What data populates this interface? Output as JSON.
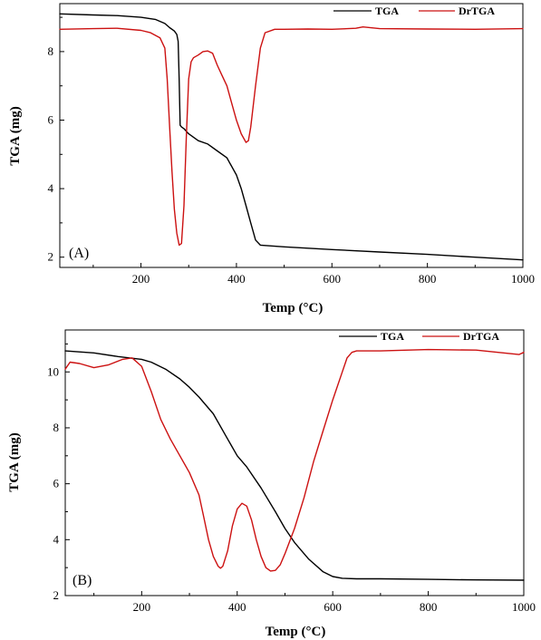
{
  "chart_data": [
    {
      "type": "line",
      "panel_label": "(A)",
      "xlabel": "Temp (°C)",
      "ylabel": "TGA (mg)",
      "xlim": [
        30,
        1000
      ],
      "ylim": [
        1.7,
        9.4
      ],
      "xticks": [
        200,
        400,
        600,
        800,
        1000
      ],
      "yticks": [
        2,
        4,
        6,
        8
      ],
      "grid": false,
      "legend_position": "top-right",
      "series": [
        {
          "name": "TGA",
          "color": "#000000",
          "x": [
            30,
            100,
            150,
            200,
            230,
            250,
            260,
            270,
            275,
            278,
            280,
            282,
            285,
            290,
            300,
            320,
            340,
            360,
            380,
            400,
            410,
            420,
            430,
            440,
            450,
            470,
            500,
            600,
            700,
            800,
            900,
            1000
          ],
          "y": [
            9.1,
            9.07,
            9.05,
            9.0,
            8.94,
            8.82,
            8.7,
            8.6,
            8.5,
            8.3,
            7.2,
            5.85,
            5.8,
            5.75,
            5.6,
            5.4,
            5.3,
            5.1,
            4.9,
            4.4,
            4.0,
            3.5,
            3.0,
            2.5,
            2.35,
            2.33,
            2.3,
            2.22,
            2.15,
            2.08,
            2.0,
            1.92
          ]
        },
        {
          "name": "DrTGA",
          "color": "#cc1111",
          "x": [
            30,
            100,
            150,
            200,
            220,
            240,
            250,
            255,
            260,
            265,
            270,
            275,
            280,
            285,
            290,
            295,
            300,
            305,
            310,
            320,
            330,
            340,
            350,
            360,
            370,
            380,
            390,
            400,
            410,
            420,
            425,
            430,
            440,
            450,
            460,
            480,
            500,
            550,
            600,
            650,
            665,
            700,
            800,
            900,
            1000
          ],
          "y": [
            8.65,
            8.67,
            8.68,
            8.62,
            8.55,
            8.4,
            8.1,
            7.2,
            5.8,
            4.5,
            3.4,
            2.7,
            2.35,
            2.4,
            3.5,
            5.5,
            7.2,
            7.7,
            7.82,
            7.9,
            8.0,
            8.02,
            7.95,
            7.6,
            7.3,
            7.0,
            6.5,
            6.0,
            5.6,
            5.35,
            5.4,
            5.8,
            7.0,
            8.1,
            8.55,
            8.65,
            8.65,
            8.66,
            8.65,
            8.68,
            8.72,
            8.67,
            8.66,
            8.65,
            8.67
          ]
        }
      ]
    },
    {
      "type": "line",
      "panel_label": "(B)",
      "xlabel": "Temp (°C)",
      "ylabel": "TGA (mg)",
      "xlim": [
        40,
        1000
      ],
      "ylim": [
        2.0,
        11.5
      ],
      "xticks": [
        200,
        400,
        600,
        800,
        1000
      ],
      "yticks": [
        2,
        4,
        6,
        8,
        10
      ],
      "grid": false,
      "legend_position": "top-right",
      "series": [
        {
          "name": "TGA",
          "color": "#000000",
          "x": [
            40,
            100,
            150,
            200,
            220,
            250,
            280,
            300,
            320,
            350,
            380,
            400,
            420,
            450,
            480,
            500,
            520,
            550,
            580,
            600,
            620,
            650,
            700,
            800,
            900,
            1000
          ],
          "y": [
            10.75,
            10.68,
            10.55,
            10.45,
            10.35,
            10.1,
            9.75,
            9.45,
            9.1,
            8.5,
            7.6,
            7.0,
            6.6,
            5.85,
            5.0,
            4.4,
            3.9,
            3.3,
            2.85,
            2.68,
            2.62,
            2.6,
            2.6,
            2.58,
            2.56,
            2.55
          ]
        },
        {
          "name": "DrTGA",
          "color": "#cc1111",
          "x": [
            40,
            50,
            70,
            100,
            130,
            160,
            180,
            200,
            220,
            240,
            260,
            280,
            300,
            320,
            330,
            340,
            350,
            360,
            365,
            370,
            380,
            390,
            400,
            410,
            420,
            430,
            440,
            450,
            460,
            470,
            480,
            490,
            500,
            520,
            540,
            560,
            580,
            600,
            620,
            630,
            640,
            650,
            700,
            800,
            900,
            990,
            1000
          ],
          "y": [
            10.1,
            10.35,
            10.3,
            10.15,
            10.25,
            10.45,
            10.5,
            10.2,
            9.3,
            8.3,
            7.6,
            7.0,
            6.4,
            5.6,
            4.8,
            4.0,
            3.4,
            3.05,
            2.98,
            3.05,
            3.6,
            4.5,
            5.1,
            5.3,
            5.2,
            4.7,
            4.0,
            3.4,
            3.0,
            2.88,
            2.9,
            3.1,
            3.5,
            4.4,
            5.5,
            6.8,
            7.9,
            9.0,
            10.0,
            10.5,
            10.7,
            10.75,
            10.75,
            10.8,
            10.78,
            10.62,
            10.7
          ]
        }
      ]
    }
  ]
}
